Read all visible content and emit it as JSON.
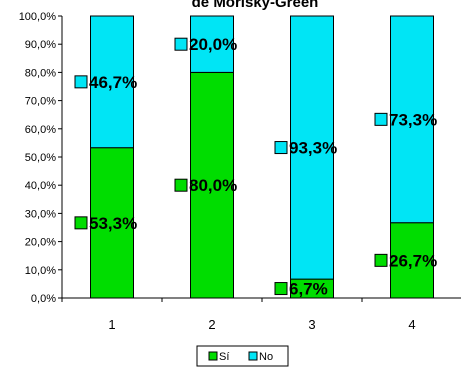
{
  "chart_data": {
    "type": "bar",
    "stacked": true,
    "percent": true,
    "title": "de Morisky-Green",
    "categories": [
      "1",
      "2",
      "3",
      "4"
    ],
    "series": [
      {
        "name": "Sí",
        "color": "#00dd00",
        "values": [
          53.3,
          80.0,
          6.7,
          26.7
        ],
        "labels": [
          "53,3%",
          "80,0%",
          "6,7%",
          "26,7%"
        ]
      },
      {
        "name": "No",
        "color": "#00e5f5",
        "values": [
          46.7,
          20.0,
          93.3,
          73.3
        ],
        "labels": [
          "46,7%",
          "20,0%",
          "93,3%",
          "73,3%"
        ]
      }
    ],
    "ylim": [
      0,
      100
    ],
    "yticks": [
      "0,0%",
      "10,0%",
      "20,0%",
      "30,0%",
      "40,0%",
      "50,0%",
      "60,0%",
      "70,0%",
      "80,0%",
      "90,0%",
      "100,0%"
    ],
    "grid": false,
    "legend": "bottom-center"
  }
}
